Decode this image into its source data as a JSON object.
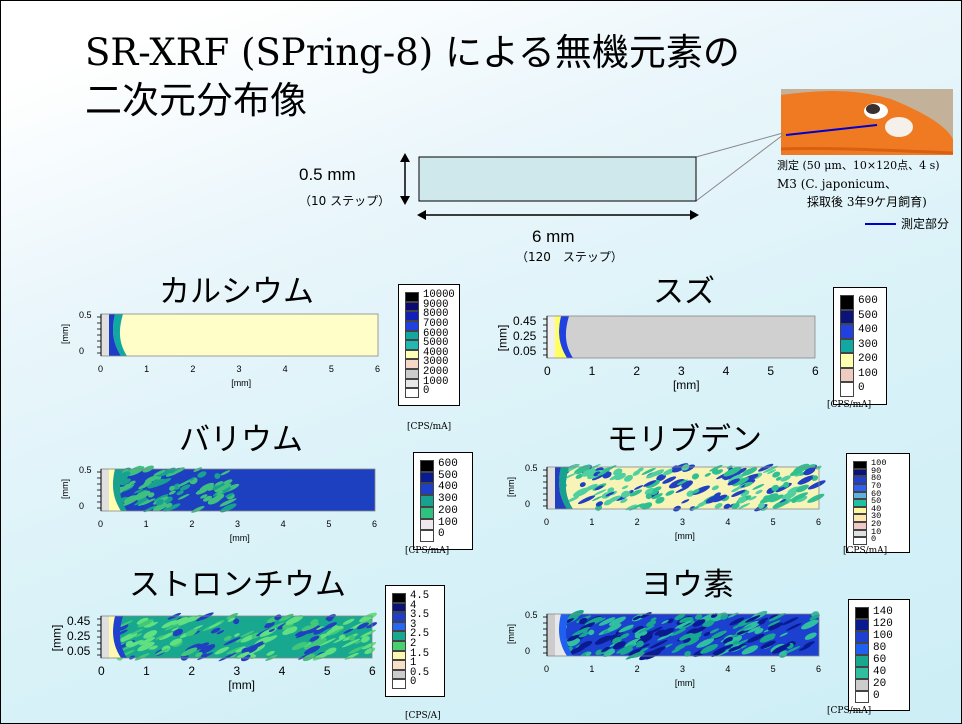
{
  "title": {
    "line1": "SR-XRF (SPring-8) による無機元素の",
    "line2": "二次元分布像"
  },
  "diagram": {
    "height_value": "0.5 mm",
    "height_steps": "（10 ステップ）",
    "width_value": "6 mm",
    "width_steps": "（120　ステップ）"
  },
  "specimen": {
    "line1": "測定 (50 μm、10×120点、4 s)",
    "line2": "M3 (C. japonicum、",
    "line3": "採取後 3年9ケ月飼育)",
    "legend": "測定部分"
  },
  "elements": {
    "calcium": {
      "name": "カルシウム",
      "scale": [
        "10000",
        "9000",
        "8000",
        "7000",
        "6000",
        "5000",
        "4000",
        "3000",
        "2000",
        "1000",
        "0"
      ],
      "unit": "[CPS/mA]",
      "x_ticks": [
        "0",
        "1",
        "2",
        "3",
        "4",
        "5",
        "6"
      ],
      "y_ticks": [
        "0.5",
        "0"
      ],
      "xlabel": "[mm]",
      "ylabel": "[mm]"
    },
    "tin": {
      "name": "スズ",
      "scale": [
        "600",
        "500",
        "400",
        "300",
        "200",
        "100",
        "0"
      ],
      "unit": "[CPS/mA]",
      "x_ticks": [
        "0",
        "1",
        "2",
        "3",
        "4",
        "5",
        "6"
      ],
      "y_ticks": [
        "0.45",
        "0.25",
        "0.05"
      ],
      "xlabel": "[mm]",
      "ylabel": "[mm]"
    },
    "barium": {
      "name": "バリウム",
      "scale": [
        "600",
        "500",
        "400",
        "300",
        "200",
        "100",
        "0"
      ],
      "unit": "[CPS/mA]",
      "x_ticks": [
        "0",
        "1",
        "2",
        "3",
        "4",
        "5",
        "6"
      ],
      "y_ticks": [
        "0.5",
        "0"
      ],
      "xlabel": "[mm]",
      "ylabel": "[mm]"
    },
    "molybdenum": {
      "name": "モリブデン",
      "scale": [
        "100",
        "90",
        "80",
        "70",
        "60",
        "50",
        "40",
        "30",
        "20",
        "10",
        "0"
      ],
      "unit": "[CPS/mA]",
      "x_ticks": [
        "0",
        "1",
        "2",
        "3",
        "4",
        "5",
        "6"
      ],
      "y_ticks": [
        "0.5",
        "0"
      ],
      "xlabel": "[mm]",
      "ylabel": "[mm]"
    },
    "strontium": {
      "name": "ストロンチウム",
      "scale": [
        "4.5",
        "4",
        "3.5",
        "3",
        "2.5",
        "2",
        "1.5",
        "1",
        "0.5",
        "0"
      ],
      "unit": "[CPS/A]",
      "x_ticks": [
        "0",
        "1",
        "2",
        "3",
        "4",
        "5",
        "6"
      ],
      "y_ticks": [
        "0.45",
        "0.25",
        "0.05"
      ],
      "xlabel": "[mm]",
      "ylabel": "[mm]"
    },
    "iodine": {
      "name": "ヨウ素",
      "scale": [
        "140",
        "120",
        "100",
        "80",
        "60",
        "40",
        "20",
        "0"
      ],
      "unit": "[CPS/mA]",
      "x_ticks": [
        "0",
        "1",
        "2",
        "3",
        "4",
        "5",
        "6"
      ],
      "y_ticks": [
        "0.5",
        "0"
      ],
      "xlabel": "[mm]",
      "ylabel": "[mm]"
    }
  }
}
